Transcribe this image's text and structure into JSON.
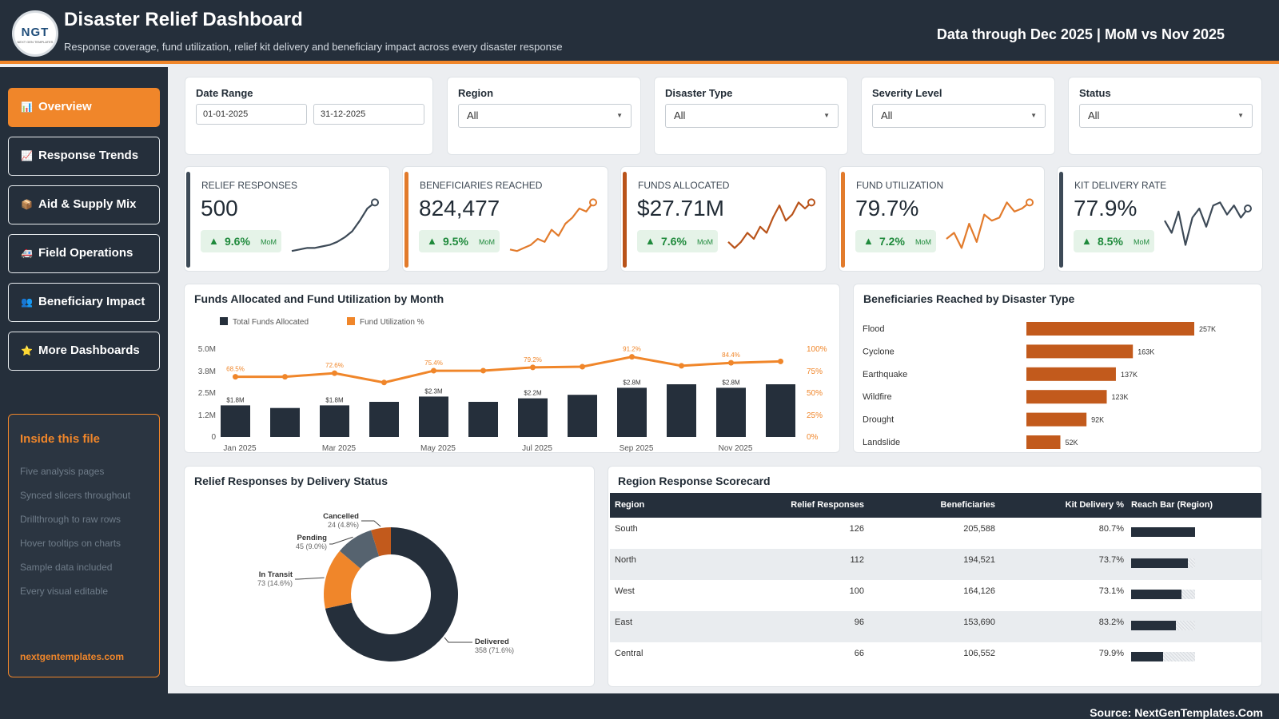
{
  "header": {
    "title": "Disaster Relief Dashboard",
    "subtitle": "Response coverage, fund utilization, relief kit delivery and beneficiary impact across every disaster response",
    "data_through": "Data through Dec 2025 | MoM vs Nov 2025",
    "logo_text": "NGT",
    "logo_sub": "NEXT GEN TEMPLATES"
  },
  "sidebar": {
    "items": [
      {
        "label": "Overview",
        "icon": "bar-chart-icon",
        "glyph": "📊"
      },
      {
        "label": "Response Trends",
        "icon": "trend-chart-icon",
        "glyph": "📈"
      },
      {
        "label": "Aid & Supply Mix",
        "icon": "package-icon",
        "glyph": "📦"
      },
      {
        "label": "Field Operations",
        "icon": "truck-icon",
        "glyph": "🚑"
      },
      {
        "label": "Beneficiary Impact",
        "icon": "people-icon",
        "glyph": "👥"
      },
      {
        "label": "More Dashboards",
        "icon": "star-icon",
        "glyph": "⭐"
      }
    ],
    "inside": {
      "title": "Inside this file",
      "items": [
        "Five analysis pages",
        "Synced slicers throughout",
        "Drillthrough to raw rows",
        "Hover tooltips on charts",
        "Sample data included",
        "Every visual editable"
      ],
      "link": "nextgentemplates.com"
    }
  },
  "filters": {
    "date_range": {
      "label": "Date Range",
      "start": "01-01-2025",
      "end": "31-12-2025"
    },
    "region": {
      "label": "Region",
      "value": "All"
    },
    "disaster_type": {
      "label": "Disaster Type",
      "value": "All"
    },
    "severity": {
      "label": "Severity Level",
      "value": "All"
    },
    "status": {
      "label": "Status",
      "value": "All"
    }
  },
  "kpis": [
    {
      "label": "RELIEF RESPONSES",
      "value": "500",
      "change": "9.6%",
      "mom": "MoM",
      "color": "#3d4a57",
      "spark": [
        2,
        3,
        4,
        4,
        5,
        6,
        8,
        11,
        15,
        22,
        30,
        34
      ]
    },
    {
      "label": "BENEFICIARIES REACHED",
      "value": "824,477",
      "change": "9.5%",
      "mom": "MoM",
      "color": "#e27b2c",
      "spark": [
        3,
        2,
        4,
        6,
        10,
        8,
        16,
        12,
        20,
        24,
        30,
        28,
        34
      ]
    },
    {
      "label": "FUNDS ALLOCATED",
      "value": "$27.71M",
      "change": "7.6%",
      "mom": "MoM",
      "color": "#b9531a",
      "spark": [
        8,
        4,
        8,
        14,
        10,
        18,
        14,
        24,
        32,
        22,
        26,
        34,
        30,
        34
      ]
    },
    {
      "label": "FUND UTILIZATION",
      "value": "79.7%",
      "change": "7.2%",
      "mom": "MoM",
      "color": "#e27b2c",
      "spark": [
        10,
        14,
        4,
        20,
        8,
        26,
        22,
        24,
        34,
        28,
        30,
        34
      ]
    },
    {
      "label": "KIT DELIVERY RATE",
      "value": "77.9%",
      "change": "8.5%",
      "mom": "MoM",
      "color": "#3d4a57",
      "spark": [
        22,
        14,
        28,
        6,
        24,
        30,
        18,
        32,
        34,
        26,
        32,
        24,
        30
      ]
    }
  ],
  "funds_chart": {
    "title": "Funds Allocated and Fund Utilization by Month",
    "legend": [
      "Total Funds Allocated",
      "Fund Utilization %"
    ],
    "left_ticks": [
      "5.0M",
      "3.8M",
      "2.5M",
      "1.2M",
      "0"
    ],
    "right_ticks": [
      "100%",
      "75%",
      "50%",
      "25%",
      "0%"
    ],
    "x_labels": [
      "Jan 2025",
      "Mar 2025",
      "May 2025",
      "Jul 2025",
      "Sep 2025",
      "Nov 2025"
    ]
  },
  "chart_data": [
    {
      "type": "bar",
      "title": "Funds Allocated and Fund Utilization by Month",
      "categories": [
        "Jan 2025",
        "Feb 2025",
        "Mar 2025",
        "Apr 2025",
        "May 2025",
        "Jun 2025",
        "Jul 2025",
        "Aug 2025",
        "Sep 2025",
        "Oct 2025",
        "Nov 2025",
        "Dec 2025"
      ],
      "series": [
        {
          "name": "Total Funds Allocated",
          "type": "bar",
          "axis": "left",
          "values": [
            1.8,
            1.65,
            1.8,
            2.0,
            2.3,
            2.0,
            2.2,
            2.4,
            2.8,
            3.0,
            2.8,
            3.0
          ]
        },
        {
          "name": "Fund Utilization %",
          "type": "line",
          "axis": "right",
          "values": [
            68.5,
            68.5,
            72.6,
            62.0,
            75.4,
            75.5,
            79.2,
            80.0,
            91.2,
            81.0,
            84.4,
            86.0
          ]
        }
      ],
      "bar_labels": [
        "$1.8M",
        "",
        "$1.8M",
        "",
        "$2.3M",
        "",
        "$2.2M",
        "",
        "$2.8M",
        "",
        "$2.8M",
        ""
      ],
      "line_labels": [
        "68.5%",
        "",
        "72.6%",
        "",
        "75.4%",
        "",
        "79.2%",
        "",
        "91.2%",
        "",
        "84.4%",
        ""
      ],
      "ylim": [
        0,
        5.0
      ],
      "y2lim": [
        0,
        100
      ]
    },
    {
      "type": "bar",
      "title": "Beneficiaries Reached by Disaster Type",
      "categories": [
        "Flood",
        "Cyclone",
        "Earthquake",
        "Wildfire",
        "Drought",
        "Landslide"
      ],
      "values": [
        257000,
        163000,
        137000,
        123000,
        92000,
        52000
      ],
      "labels": [
        "257K",
        "163K",
        "137K",
        "123K",
        "92K",
        "52K"
      ]
    },
    {
      "type": "pie",
      "title": "Relief Responses by Delivery Status",
      "categories": [
        "Delivered",
        "In Transit",
        "Pending",
        "Cancelled"
      ],
      "values": [
        358,
        73,
        45,
        24
      ],
      "labels": [
        "358 (71.6%)",
        "73 (14.6%)",
        "45 (9.0%)",
        "24 (4.8%)"
      ],
      "colors": [
        "#252f3b",
        "#f0862a",
        "#56636f",
        "#c25a1c"
      ]
    }
  ],
  "scorecard": {
    "title": "Region Response Scorecard",
    "columns": [
      "Region",
      "Relief Responses",
      "Beneficiaries",
      "Kit Delivery %",
      "Reach Bar (Region)"
    ],
    "rows": [
      {
        "region": "South",
        "responses": "126",
        "beneficiaries": "205,588",
        "kit": "80.7%",
        "reach": 1.0
      },
      {
        "region": "North",
        "responses": "112",
        "beneficiaries": "194,521",
        "kit": "73.7%",
        "reach": 0.89
      },
      {
        "region": "West",
        "responses": "100",
        "beneficiaries": "164,126",
        "kit": "73.1%",
        "reach": 0.79
      },
      {
        "region": "East",
        "responses": "96",
        "beneficiaries": "153,690",
        "kit": "83.2%",
        "reach": 0.7
      },
      {
        "region": "Central",
        "responses": "66",
        "beneficiaries": "106,552",
        "kit": "79.9%",
        "reach": 0.5
      }
    ]
  },
  "footer": {
    "source": "Source: NextGenTemplates.Com"
  },
  "colors": {
    "navy": "#252f3b",
    "orange": "#f0862a",
    "rust": "#c25a1c",
    "up_green": "#1f8a3c"
  }
}
